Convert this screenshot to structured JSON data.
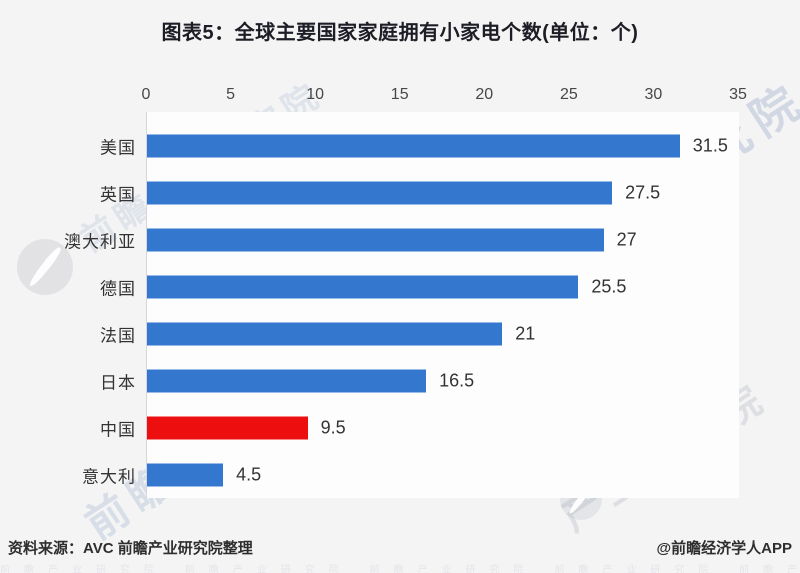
{
  "title": "图表5：全球主要国家家庭拥有小家电个数(单位：个)",
  "chart_data": {
    "type": "bar",
    "orientation": "horizontal",
    "title": "图表5：全球主要国家家庭拥有小家电个数(单位：个)",
    "categories": [
      "美国",
      "英国",
      "澳大利亚",
      "德国",
      "法国",
      "日本",
      "中国",
      "意大利"
    ],
    "values": [
      31.5,
      27.5,
      27,
      25.5,
      21,
      16.5,
      9.5,
      4.5
    ],
    "value_labels": [
      "31.5",
      "27.5",
      "27",
      "25.5",
      "21",
      "16.5",
      "9.5",
      "4.5"
    ],
    "highlight_category": "中国",
    "highlight_index": 6,
    "xlim": [
      0,
      35
    ],
    "x_tick_values": [
      0,
      5,
      10,
      15,
      20,
      25,
      30,
      35
    ],
    "x_tick_labels": [
      "0",
      "5",
      "10",
      "15",
      "20",
      "25",
      "30",
      "35"
    ],
    "axis_position": "top",
    "grid": false,
    "bar_color": "#3377cf",
    "highlight_color": "#ed0f0f"
  },
  "footer": {
    "source": "资料来源：AVC 前瞻产业研究院整理",
    "credit": "@前瞻经济学人APP"
  },
  "watermark": {
    "text": "前瞻产业研究院",
    "short_text": "产业研究院",
    "color": "#8fa6c5"
  },
  "colors": {
    "bar_blue": "#3377cf",
    "bar_red": "#ed0f0f",
    "page_background": "#f4f4f5",
    "plot_background": "#fdfdfe",
    "axis_line": "#d6d6da",
    "title_text": "#1d1d25",
    "label_text": "#333333"
  }
}
